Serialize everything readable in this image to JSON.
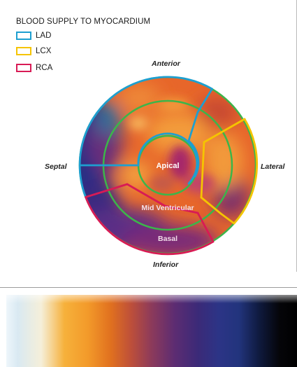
{
  "legend": {
    "title": "BLOOD SUPPLY TO MYOCARDIUM",
    "items": [
      {
        "label": "LAD",
        "color": "#1e9fd0"
      },
      {
        "label": "LCX",
        "color": "#f5c400"
      },
      {
        "label": "RCA",
        "color": "#d81b55"
      }
    ]
  },
  "orientation": {
    "anterior": "Anterior",
    "inferior": "Inferior",
    "septal": "Septal",
    "lateral": "Lateral"
  },
  "rings": {
    "apical": "Apical",
    "mid": "Mid Ventricular",
    "basal": "Basal"
  },
  "colors": {
    "ring_outline": "#3cb54a"
  }
}
